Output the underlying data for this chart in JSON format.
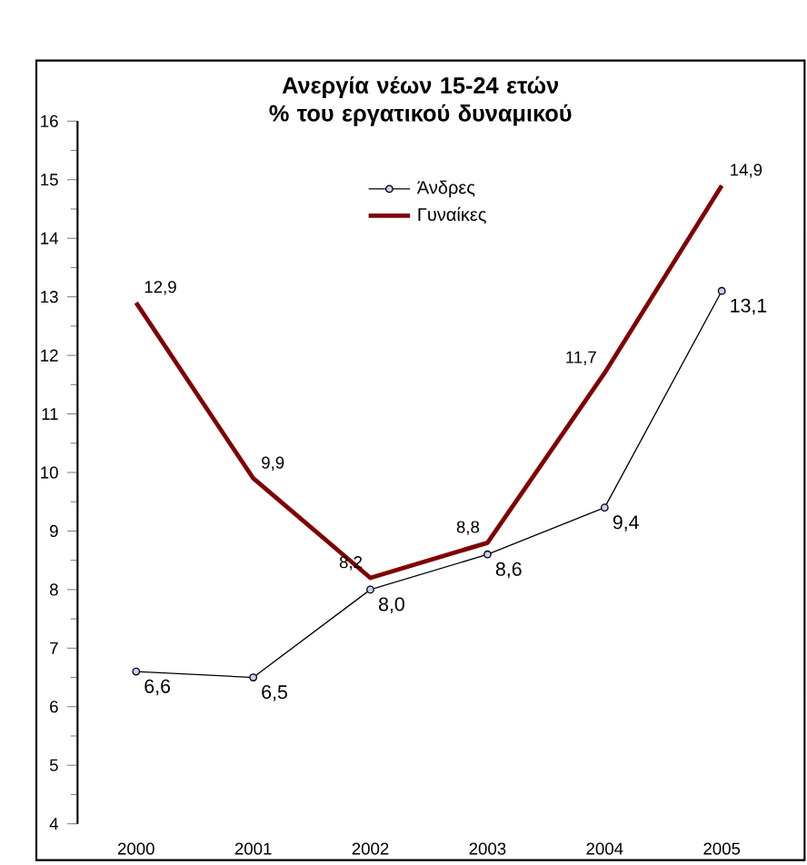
{
  "chart_data": {
    "type": "line",
    "title": "Ανεργία νέων 15-24 ετών\n% του εργατικού δυναμικού",
    "categories": [
      "2000",
      "2001",
      "2002",
      "2003",
      "2004",
      "2005"
    ],
    "series": [
      {
        "name": "Άνδρες",
        "color": "#000000",
        "marker": "circle",
        "values": [
          6.6,
          6.5,
          8.0,
          8.6,
          9.4,
          13.1
        ],
        "value_labels": [
          "6,6",
          "6,5",
          "8,0",
          "8,6",
          "9,4",
          "13,1"
        ]
      },
      {
        "name": "Γυναίκες",
        "color": "#800000",
        "marker": "none",
        "values": [
          12.9,
          9.9,
          8.2,
          8.8,
          11.7,
          14.9
        ],
        "value_labels": [
          "12,9",
          "9,9",
          "8,2",
          "8,8",
          "11,7",
          "14,9"
        ]
      }
    ],
    "ylim": [
      4,
      16
    ],
    "yticks": [
      4,
      5,
      6,
      7,
      8,
      9,
      10,
      11,
      12,
      13,
      14,
      15,
      16
    ],
    "grid": false,
    "legend": "top"
  }
}
